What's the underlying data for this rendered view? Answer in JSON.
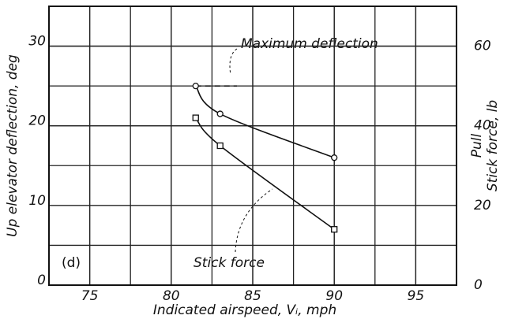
{
  "chart_data": {
    "type": "line",
    "x_label": "Indicated airspeed, Vᵢ, mph",
    "y_label": "Up elevator deflection, deg",
    "y2_label": [
      "Pull",
      "Stick force, lb"
    ],
    "panel_label": "(d)",
    "xlim": [
      72.5,
      97.5
    ],
    "xticks": [
      75,
      80,
      85,
      90,
      95
    ],
    "ylim": [
      0,
      35
    ],
    "yticks": [
      0,
      10,
      20,
      30
    ],
    "y2lim": [
      0,
      70
    ],
    "y2ticks": [
      0,
      20,
      40,
      60
    ],
    "grid": true,
    "reference_line": {
      "label": "Maximum deflection",
      "value": 25
    },
    "series": [
      {
        "name": "Deflection",
        "marker": "circle",
        "color": "#111",
        "x": [
          81.5,
          83,
          90
        ],
        "values": [
          25,
          21.5,
          16
        ]
      },
      {
        "name": "Stick force",
        "marker": "square",
        "color": "#111",
        "axis": "y2",
        "x": [
          81.5,
          83,
          90
        ],
        "values": [
          42,
          35,
          14
        ]
      }
    ]
  }
}
